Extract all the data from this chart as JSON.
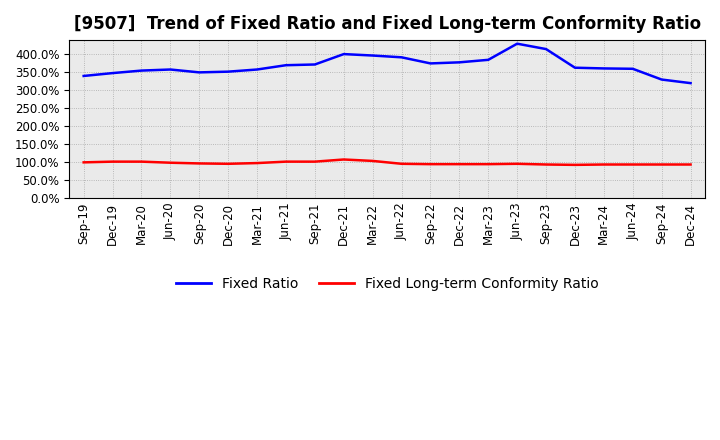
{
  "title": "[9507]  Trend of Fixed Ratio and Fixed Long-term Conformity Ratio",
  "x_labels": [
    "Sep-19",
    "Dec-19",
    "Mar-20",
    "Jun-20",
    "Sep-20",
    "Dec-20",
    "Mar-21",
    "Jun-21",
    "Sep-21",
    "Dec-21",
    "Mar-22",
    "Jun-22",
    "Sep-22",
    "Dec-22",
    "Mar-23",
    "Jun-23",
    "Sep-23",
    "Dec-23",
    "Mar-24",
    "Jun-24",
    "Sep-24",
    "Dec-24"
  ],
  "fixed_ratio": [
    340,
    348,
    355,
    358,
    350,
    352,
    358,
    370,
    372,
    401,
    397,
    392,
    375,
    378,
    385,
    430,
    415,
    363,
    361,
    360,
    330,
    320
  ],
  "fixed_lt_ratio": [
    99,
    101,
    101,
    98,
    96,
    95,
    97,
    101,
    101,
    107,
    103,
    95,
    94,
    94,
    94,
    95,
    93,
    92,
    93,
    93,
    93,
    93
  ],
  "fixed_ratio_color": "#0000FF",
  "fixed_lt_ratio_color": "#FF0000",
  "ylim": [
    0,
    440
  ],
  "yticks": [
    0,
    50,
    100,
    150,
    200,
    250,
    300,
    350,
    400
  ],
  "background_color": "#FFFFFF",
  "plot_bg_color": "#EAEAEA",
  "grid_color": "#999999",
  "legend_fixed_ratio": "Fixed Ratio",
  "legend_fixed_lt_ratio": "Fixed Long-term Conformity Ratio",
  "title_fontsize": 12,
  "tick_fontsize": 8.5,
  "legend_fontsize": 10
}
